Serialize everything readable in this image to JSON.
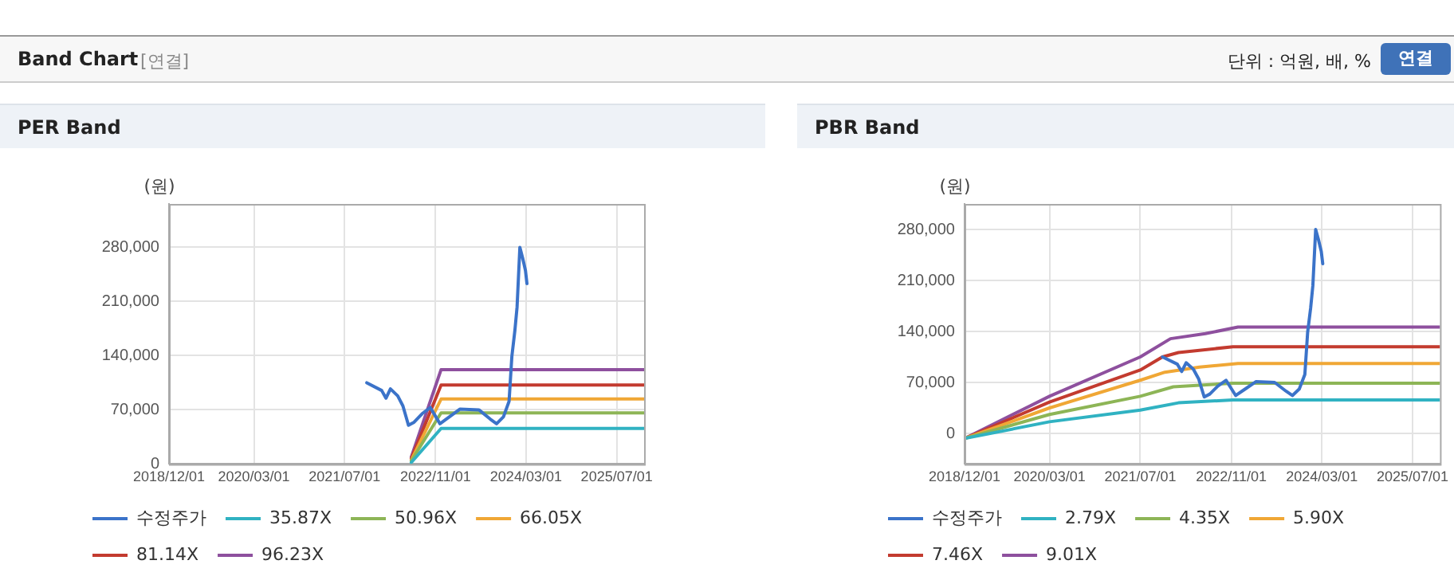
{
  "chart_data": [
    {
      "type": "other",
      "title": "Band Chart",
      "annotations": [
        "[연결]",
        "단위 : 억원, 배, %",
        "연결"
      ]
    },
    {
      "type": "line",
      "title": "PER Band",
      "ylabel": "(원)",
      "xlim": [
        "2018-12-01",
        "2025-11-25"
      ],
      "ylim": [
        0,
        336000
      ],
      "xticks": [
        {
          "value": "2018-12-01",
          "label": "2018/12/01"
        },
        {
          "value": "2020-03-01",
          "label": "2020/03/01"
        },
        {
          "value": "2021-07-01",
          "label": "2021/07/01"
        },
        {
          "value": "2022-11-01",
          "label": "2022/11/01"
        },
        {
          "value": "2024-03-01",
          "label": "2024/03/01"
        },
        {
          "value": "2025-07-01",
          "label": "2025/07/01"
        }
      ],
      "yticks": [
        0,
        {
          "value": 70000,
          "label": "70,000"
        },
        {
          "value": 140000,
          "label": "140,000"
        },
        {
          "value": 210000,
          "label": "210,000"
        },
        {
          "value": 280000,
          "label": "280,000"
        }
      ],
      "grid": true,
      "legend": "bottom",
      "marker": "none",
      "line_style": "solid",
      "series": [
        {
          "name": "수정주가",
          "color": "#3b73c9",
          "x": [
            "2021-10-28",
            "2022-01-16",
            "2022-02-08",
            "2022-03-04",
            "2022-04-12",
            "2022-05-10",
            "2022-06-09",
            "2022-07-09",
            "2022-08-21",
            "2022-10-04",
            "2022-11-25",
            "2023-01-15",
            "2023-03-13",
            "2023-06-22",
            "2023-08-22",
            "2023-09-25",
            "2023-11-01",
            "2023-12-01",
            "2023-12-16",
            "2024-01-01",
            "2024-01-13",
            "2024-01-28",
            "2024-02-12",
            "2024-02-27",
            "2024-03-06"
          ],
          "values": [
            105000,
            95000,
            85000,
            97000,
            88000,
            75000,
            50000,
            54000,
            65000,
            73000,
            52000,
            61000,
            71000,
            70000,
            58000,
            52000,
            61000,
            81000,
            139000,
            172000,
            203000,
            280000,
            266000,
            250000,
            233000
          ]
        },
        {
          "name": "35.87X",
          "color": "#30b2c2",
          "x": [
            "2022-06-24",
            "2022-12-01",
            "2025-11-25"
          ],
          "values": [
            2000,
            46000,
            46000
          ]
        },
        {
          "name": "50.96X",
          "color": "#8db556",
          "x": [
            "2022-06-24",
            "2022-12-01",
            "2025-11-25"
          ],
          "values": [
            4000,
            66000,
            66000
          ]
        },
        {
          "name": "66.05X",
          "color": "#f0a735",
          "x": [
            "2022-06-24",
            "2022-12-01",
            "2025-11-25"
          ],
          "values": [
            5000,
            84000,
            84000
          ]
        },
        {
          "name": "81.14X",
          "color": "#c33b2f",
          "x": [
            "2022-06-24",
            "2022-12-01",
            "2025-11-25"
          ],
          "values": [
            7000,
            102000,
            102000
          ]
        },
        {
          "name": "96.23X",
          "color": "#8e509e",
          "x": [
            "2022-06-24",
            "2022-12-01",
            "2025-11-25"
          ],
          "values": [
            9000,
            122000,
            122000
          ]
        }
      ]
    },
    {
      "type": "line",
      "title": "PBR Band",
      "ylabel": "(원)",
      "xlim": [
        "2018-12-01",
        "2025-11-25"
      ],
      "ylim": [
        -42000,
        315000
      ],
      "xticks": [
        {
          "value": "2018-12-01",
          "label": "2018/12/01"
        },
        {
          "value": "2020-03-01",
          "label": "2020/03/01"
        },
        {
          "value": "2021-07-01",
          "label": "2021/07/01"
        },
        {
          "value": "2022-11-01",
          "label": "2022/11/01"
        },
        {
          "value": "2024-03-01",
          "label": "2024/03/01"
        },
        {
          "value": "2025-07-01",
          "label": "2025/07/01"
        }
      ],
      "yticks": [
        0,
        {
          "value": 70000,
          "label": "70,000"
        },
        {
          "value": 140000,
          "label": "140,000"
        },
        {
          "value": 210000,
          "label": "210,000"
        },
        {
          "value": 280000,
          "label": "280,000"
        }
      ],
      "grid": true,
      "legend": "bottom",
      "marker": "none",
      "line_style": "solid",
      "series": [
        {
          "name": "수정주가",
          "color": "#3b73c9",
          "x": [
            "2021-10-28",
            "2022-01-16",
            "2022-02-08",
            "2022-03-04",
            "2022-04-12",
            "2022-05-10",
            "2022-06-09",
            "2022-07-09",
            "2022-08-21",
            "2022-10-04",
            "2022-11-25",
            "2023-01-15",
            "2023-03-13",
            "2023-06-22",
            "2023-08-22",
            "2023-09-25",
            "2023-11-01",
            "2023-12-01",
            "2023-12-16",
            "2024-01-01",
            "2024-01-13",
            "2024-01-28",
            "2024-02-12",
            "2024-02-27",
            "2024-03-06"
          ],
          "values": [
            105000,
            95000,
            85000,
            97000,
            88000,
            75000,
            50000,
            54000,
            65000,
            73000,
            52000,
            61000,
            71000,
            70000,
            58000,
            52000,
            61000,
            81000,
            139000,
            172000,
            203000,
            280000,
            266000,
            250000,
            233000
          ]
        },
        {
          "name": "2.79X",
          "color": "#30b2c2",
          "x": [
            "2018-12-01",
            "2020-03-01",
            "2021-07-01",
            "2022-01-22",
            "2022-11-10",
            "2025-11-25"
          ],
          "values": [
            -7000,
            16000,
            32000,
            42000,
            46000,
            46000
          ]
        },
        {
          "name": "4.35X",
          "color": "#8db556",
          "x": [
            "2018-12-01",
            "2020-03-01",
            "2021-07-01",
            "2021-12-25",
            "2022-11-10",
            "2025-11-25"
          ],
          "values": [
            -7000,
            26000,
            51000,
            64000,
            69000,
            69000
          ]
        },
        {
          "name": "5.90X",
          "color": "#f0a735",
          "x": [
            "2018-12-01",
            "2020-03-01",
            "2021-07-01",
            "2021-11-10",
            "2022-05-15",
            "2022-12-07",
            "2025-11-25"
          ],
          "values": [
            -7000,
            35000,
            73000,
            84000,
            91000,
            96000,
            96000
          ]
        },
        {
          "name": "7.46X",
          "color": "#c33b2f",
          "x": [
            "2018-12-01",
            "2020-03-01",
            "2021-07-01",
            "2021-10-28",
            "2022-01-22",
            "2022-11-10",
            "2025-11-25"
          ],
          "values": [
            -7000,
            43000,
            87000,
            105000,
            111000,
            119000,
            119000
          ]
        },
        {
          "name": "9.01X",
          "color": "#8e509e",
          "x": [
            "2018-12-01",
            "2020-03-01",
            "2021-07-01",
            "2021-12-10",
            "2022-06-15",
            "2022-12-07",
            "2025-11-25"
          ],
          "values": [
            -7000,
            51000,
            105000,
            130000,
            137000,
            146000,
            146000
          ]
        }
      ]
    }
  ]
}
